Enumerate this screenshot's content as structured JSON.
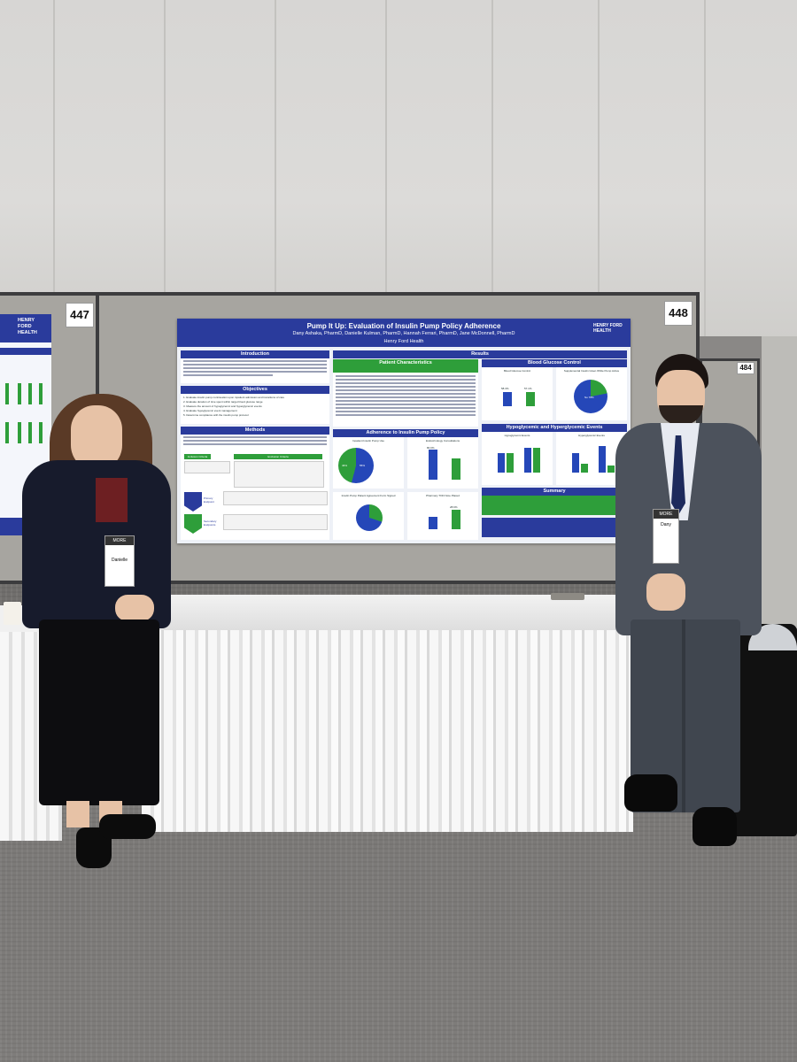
{
  "scene": {
    "board_left_number": "447",
    "board_right_number": "448",
    "board_far_number": "484"
  },
  "poster": {
    "title": "Pump It Up: Evaluation of Insulin Pump Policy Adherence",
    "authors": "Dany Ashaka, PharmD, Danielle Kulman, PharmD, Hannah Ferrari, PharmD, Jane McDonnell, PharmD",
    "institution": "Henry Ford Health",
    "logo": "HENRY FORD HEALTH",
    "sections": {
      "introduction": "Introduction",
      "objectives": "Objectives",
      "methods": "Methods",
      "results": "Results",
      "patient_characteristics": "Patient Characteristics",
      "blood_glucose_control": "Blood Glucose Control",
      "adherence": "Adherence to Insulin Pump Policy",
      "hypo_hyper": "Hypoglycemic and Hyperglycemic Events",
      "summary": "Summary"
    },
    "labels": {
      "inclusion": "Inclusion Criteria",
      "exclusion": "Exclusion Criteria",
      "primary": "Primary Endpoint",
      "secondary": "Secondary Endpoints",
      "inpatient_use": "Inpatient Insulin Pump Use",
      "endo_consult": "Endocrinology Consultations",
      "pump_agreement": "Insulin Pump Patient Agreement Form Signed",
      "pharmacy_tod": "Pharmacy TOD Note Placed",
      "hypo_events": "Hypoglycemic Events",
      "hyper_events": "Hyperglycemic Events",
      "blood_glucose": "Blood Glucose Control",
      "supplemental": "Supplemental Insulin Given While Pump Active",
      "pie_pct_a": "46%",
      "pie_pct_b": "55%",
      "pie_pct_c": "No 78%",
      "pie_pct_d": "Yes 70%",
      "bar_a": "58.3%",
      "bar_b": "57.1%",
      "bar_c": "80.0%",
      "bar_d": "28.6%"
    },
    "objectives_list": [
      "1. Evaluate insulin pump continuation upon inpatient admission and transitions of care",
      "2. Evaluate duration of time spent within target blood glucose range",
      "3. Measure the amount of hypoglycemic and hyperglycemic events",
      "4. Evaluate hypoglycemic event management",
      "5. Determine compliance with the insulin pump protocol"
    ]
  },
  "people": {
    "left_badge_name": "Danielle",
    "right_badge_name": "Dany",
    "conference": "MORE"
  },
  "side_board": {
    "logo": "HENRY FORD HEALTH"
  }
}
